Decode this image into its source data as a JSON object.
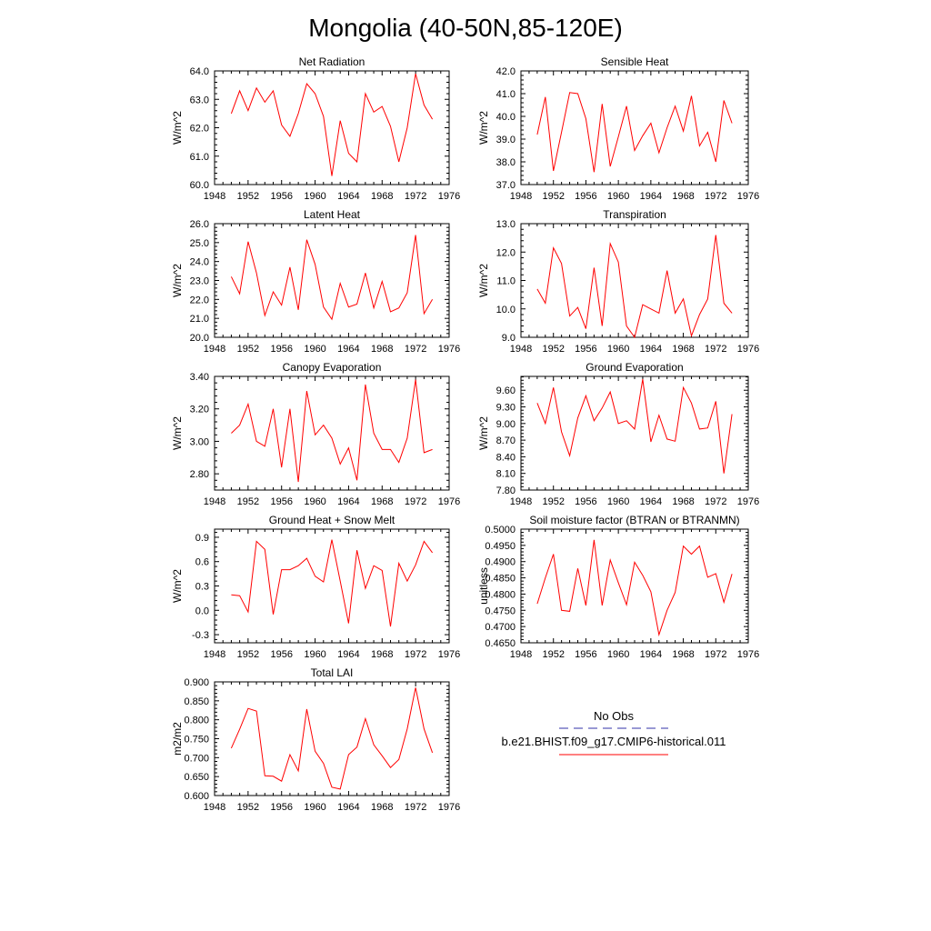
{
  "page_title": "Mongolia (40-50N,85-120E)",
  "legend": {
    "entries": [
      {
        "label": "No Obs",
        "color": "#3333aa",
        "dash": true
      },
      {
        "label": "b.e21.BHIST.f09_g17.CMIP6-historical.011",
        "color": "#ff0000",
        "dash": false
      }
    ]
  },
  "line_color": "#ff0000",
  "chart_data": [
    {
      "type": "line",
      "title": "Net Radiation",
      "ylabel": "W/m^2",
      "xlim": [
        1948,
        1976
      ],
      "xticks": [
        1948,
        1952,
        1956,
        1960,
        1964,
        1968,
        1972,
        1976
      ],
      "ylim": [
        60.0,
        64.0
      ],
      "yticks": [
        "60.0",
        "61.0",
        "62.0",
        "63.0",
        "64.0"
      ],
      "x": [
        1950,
        1951,
        1952,
        1953,
        1954,
        1955,
        1956,
        1957,
        1958,
        1959,
        1960,
        1961,
        1962,
        1963,
        1964,
        1965,
        1966,
        1967,
        1968,
        1969,
        1970,
        1971,
        1972,
        1973,
        1974
      ],
      "series": [
        {
          "values": [
            62.5,
            63.3,
            62.6,
            63.4,
            62.9,
            63.3,
            62.1,
            61.7,
            62.5,
            63.55,
            63.2,
            62.4,
            60.3,
            62.25,
            61.1,
            60.8,
            63.2,
            62.55,
            62.75,
            62.05,
            60.8,
            62.0,
            63.9,
            62.8,
            62.3
          ]
        }
      ]
    },
    {
      "type": "line",
      "title": "Sensible Heat",
      "ylabel": "W/m^2",
      "xlim": [
        1948,
        1976
      ],
      "xticks": [
        1948,
        1952,
        1956,
        1960,
        1964,
        1968,
        1972,
        1976
      ],
      "ylim": [
        37.0,
        42.0
      ],
      "yticks": [
        "37.0",
        "38.0",
        "39.0",
        "40.0",
        "41.0",
        "42.0"
      ],
      "x": [
        1950,
        1951,
        1952,
        1953,
        1954,
        1955,
        1956,
        1957,
        1958,
        1959,
        1960,
        1961,
        1962,
        1963,
        1964,
        1965,
        1966,
        1967,
        1968,
        1969,
        1970,
        1971,
        1972,
        1973,
        1974
      ],
      "series": [
        {
          "values": [
            39.2,
            40.85,
            37.6,
            39.3,
            41.05,
            41.0,
            39.9,
            37.55,
            40.55,
            37.8,
            39.1,
            40.45,
            38.5,
            39.15,
            39.7,
            38.4,
            39.5,
            40.45,
            39.35,
            40.9,
            38.7,
            39.3,
            38.0,
            40.7,
            39.7
          ]
        }
      ]
    },
    {
      "type": "line",
      "title": "Latent Heat",
      "ylabel": "W/m^2",
      "xlim": [
        1948,
        1976
      ],
      "xticks": [
        1948,
        1952,
        1956,
        1960,
        1964,
        1968,
        1972,
        1976
      ],
      "ylim": [
        20.0,
        26.0
      ],
      "yticks": [
        "20.0",
        "21.0",
        "22.0",
        "23.0",
        "24.0",
        "25.0",
        "26.0"
      ],
      "x": [
        1950,
        1951,
        1952,
        1953,
        1954,
        1955,
        1956,
        1957,
        1958,
        1959,
        1960,
        1961,
        1962,
        1963,
        1964,
        1965,
        1966,
        1967,
        1968,
        1969,
        1970,
        1971,
        1972,
        1973,
        1974
      ],
      "series": [
        {
          "values": [
            23.2,
            22.3,
            25.05,
            23.4,
            21.15,
            22.4,
            21.7,
            23.7,
            21.45,
            25.15,
            23.85,
            21.6,
            20.95,
            22.85,
            21.6,
            21.75,
            23.4,
            21.55,
            22.95,
            21.35,
            21.55,
            22.35,
            25.4,
            21.25,
            22.0
          ]
        }
      ]
    },
    {
      "type": "line",
      "title": "Transpiration",
      "ylabel": "W/m^2",
      "xlim": [
        1948,
        1976
      ],
      "xticks": [
        1948,
        1952,
        1956,
        1960,
        1964,
        1968,
        1972,
        1976
      ],
      "ylim": [
        9.0,
        13.0
      ],
      "yticks": [
        "9.0",
        "10.0",
        "11.0",
        "12.0",
        "13.0"
      ],
      "x": [
        1950,
        1951,
        1952,
        1953,
        1954,
        1955,
        1956,
        1957,
        1958,
        1959,
        1960,
        1961,
        1962,
        1963,
        1964,
        1965,
        1966,
        1967,
        1968,
        1969,
        1970,
        1971,
        1972,
        1973,
        1974
      ],
      "series": [
        {
          "values": [
            10.7,
            10.2,
            12.15,
            11.6,
            9.75,
            10.05,
            9.3,
            11.45,
            9.4,
            12.3,
            11.65,
            9.4,
            9.0,
            10.15,
            10.0,
            9.85,
            11.35,
            9.85,
            10.35,
            9.05,
            9.8,
            10.35,
            12.6,
            10.2,
            9.85
          ]
        }
      ]
    },
    {
      "type": "line",
      "title": "Canopy Evaporation",
      "ylabel": "W/m^2",
      "xlim": [
        1948,
        1976
      ],
      "xticks": [
        1948,
        1952,
        1956,
        1960,
        1964,
        1968,
        1972,
        1976
      ],
      "ylim": [
        2.7,
        3.4
      ],
      "yticks": [
        "2.80",
        "3.00",
        "3.20",
        "3.40"
      ],
      "x": [
        1950,
        1951,
        1952,
        1953,
        1954,
        1955,
        1956,
        1957,
        1958,
        1959,
        1960,
        1961,
        1962,
        1963,
        1964,
        1965,
        1966,
        1967,
        1968,
        1969,
        1970,
        1971,
        1972,
        1973,
        1974
      ],
      "series": [
        {
          "values": [
            3.05,
            3.1,
            3.23,
            3.0,
            2.97,
            3.2,
            2.84,
            3.2,
            2.75,
            3.31,
            3.04,
            3.1,
            3.02,
            2.86,
            2.96,
            2.76,
            3.35,
            3.05,
            2.95,
            2.95,
            2.87,
            3.02,
            3.38,
            2.93,
            2.95
          ]
        }
      ]
    },
    {
      "type": "line",
      "title": "Ground Evaporation",
      "ylabel": "W/m^2",
      "xlim": [
        1948,
        1976
      ],
      "xticks": [
        1948,
        1952,
        1956,
        1960,
        1964,
        1968,
        1972,
        1976
      ],
      "ylim": [
        7.8,
        9.85
      ],
      "yticks": [
        "7.80",
        "8.10",
        "8.40",
        "8.70",
        "9.00",
        "9.30",
        "9.60"
      ],
      "x": [
        1950,
        1951,
        1952,
        1953,
        1954,
        1955,
        1956,
        1957,
        1958,
        1959,
        1960,
        1961,
        1962,
        1963,
        1964,
        1965,
        1966,
        1967,
        1968,
        1969,
        1970,
        1971,
        1972,
        1973,
        1974
      ],
      "series": [
        {
          "values": [
            9.37,
            9.0,
            9.65,
            8.85,
            8.42,
            9.1,
            9.5,
            9.05,
            9.28,
            9.57,
            9.0,
            9.05,
            8.9,
            9.8,
            8.67,
            9.15,
            8.72,
            8.68,
            9.65,
            9.37,
            8.9,
            8.92,
            9.4,
            8.1,
            9.17
          ]
        }
      ]
    },
    {
      "type": "line",
      "title": "Ground Heat + Snow Melt",
      "ylabel": "W/m^2",
      "xlim": [
        1948,
        1976
      ],
      "xticks": [
        1948,
        1952,
        1956,
        1960,
        1964,
        1968,
        1972,
        1976
      ],
      "ylim": [
        -0.4,
        1.0
      ],
      "yticks": [
        "-0.3",
        "0.0",
        "0.3",
        "0.6",
        "0.9"
      ],
      "x": [
        1950,
        1951,
        1952,
        1953,
        1954,
        1955,
        1956,
        1957,
        1958,
        1959,
        1960,
        1961,
        1962,
        1963,
        1964,
        1965,
        1966,
        1967,
        1968,
        1969,
        1970,
        1971,
        1972,
        1973,
        1974
      ],
      "series": [
        {
          "values": [
            0.19,
            0.18,
            -0.02,
            0.85,
            0.75,
            -0.05,
            0.5,
            0.5,
            0.55,
            0.64,
            0.42,
            0.35,
            0.87,
            0.36,
            -0.16,
            0.74,
            0.27,
            0.55,
            0.49,
            -0.2,
            0.58,
            0.36,
            0.56,
            0.85,
            0.71
          ]
        }
      ]
    },
    {
      "type": "line",
      "title": "Soil moisture factor (BTRAN or BTRANMN)",
      "ylabel": "unitless",
      "xlim": [
        1948,
        1976
      ],
      "xticks": [
        1948,
        1952,
        1956,
        1960,
        1964,
        1968,
        1972,
        1976
      ],
      "ylim": [
        0.465,
        0.5
      ],
      "yticks": [
        "0.4650",
        "0.4700",
        "0.4750",
        "0.4800",
        "0.4850",
        "0.4900",
        "0.4950",
        "0.5000"
      ],
      "x": [
        1950,
        1951,
        1952,
        1953,
        1954,
        1955,
        1956,
        1957,
        1958,
        1959,
        1960,
        1961,
        1962,
        1963,
        1964,
        1965,
        1966,
        1967,
        1968,
        1969,
        1970,
        1971,
        1972,
        1973,
        1974
      ],
      "series": [
        {
          "values": [
            0.477,
            0.485,
            0.4923,
            0.475,
            0.4747,
            0.4879,
            0.4765,
            0.4967,
            0.4765,
            0.4905,
            0.4835,
            0.4767,
            0.4898,
            0.4858,
            0.4807,
            0.4675,
            0.475,
            0.4805,
            0.4948,
            0.4923,
            0.4948,
            0.4852,
            0.4863,
            0.4775,
            0.4862
          ]
        }
      ]
    },
    {
      "type": "line",
      "title": "Total LAI",
      "ylabel": "m2/m2",
      "xlim": [
        1948,
        1976
      ],
      "xticks": [
        1948,
        1952,
        1956,
        1960,
        1964,
        1968,
        1972,
        1976
      ],
      "ylim": [
        0.6,
        0.9
      ],
      "yticks": [
        "0.600",
        "0.650",
        "0.700",
        "0.750",
        "0.800",
        "0.850",
        "0.900"
      ],
      "x": [
        1950,
        1951,
        1952,
        1953,
        1954,
        1955,
        1956,
        1957,
        1958,
        1959,
        1960,
        1961,
        1962,
        1963,
        1964,
        1965,
        1966,
        1967,
        1968,
        1969,
        1970,
        1971,
        1972,
        1973,
        1974
      ],
      "series": [
        {
          "values": [
            0.725,
            0.775,
            0.83,
            0.823,
            0.652,
            0.651,
            0.638,
            0.708,
            0.665,
            0.828,
            0.717,
            0.685,
            0.622,
            0.617,
            0.708,
            0.728,
            0.803,
            0.734,
            0.705,
            0.674,
            0.695,
            0.776,
            0.885,
            0.776,
            0.713
          ]
        }
      ]
    }
  ]
}
